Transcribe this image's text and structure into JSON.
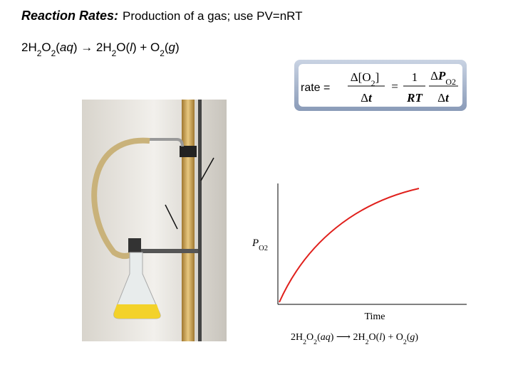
{
  "title": {
    "lead": "Reaction Rates:",
    "text": "Production of a gas; use PV=nRT"
  },
  "equation": [
    {
      "text": "2H"
    },
    {
      "text": "2",
      "style": "sub"
    },
    {
      "text": "O"
    },
    {
      "text": "2",
      "style": "sub"
    },
    {
      "text": "("
    },
    {
      "text": "aq",
      "style": "italic"
    },
    {
      "text": ") → 2H"
    },
    {
      "text": "2",
      "style": "sub"
    },
    {
      "text": "O("
    },
    {
      "text": "l",
      "style": "italic"
    },
    {
      "text": ") + O"
    },
    {
      "text": "2",
      "style": "sub"
    },
    {
      "text": "("
    },
    {
      "text": "g",
      "style": "italic"
    },
    {
      "text": ")"
    }
  ],
  "rate_box": {
    "lhs": "rate =",
    "num1": [
      {
        "text": "Δ[O"
      },
      {
        "text": "2",
        "style": "sub"
      },
      {
        "text": "]"
      }
    ],
    "den1": [
      {
        "text": "Δ"
      },
      {
        "text": "t",
        "style": "bold-italic"
      }
    ],
    "eq": "=",
    "num2": [
      {
        "text": "1"
      }
    ],
    "den2": [
      {
        "text": "RT",
        "style": "bold-italic"
      }
    ],
    "num3": [
      {
        "text": "Δ"
      },
      {
        "text": "P",
        "style": "bold-italic"
      },
      {
        "text": "O",
        "style": "sub"
      },
      {
        "text": "2",
        "style": "sub"
      }
    ],
    "den3": [
      {
        "text": "Δ"
      },
      {
        "text": "t",
        "style": "bold-italic"
      }
    ]
  },
  "graph": {
    "y_label": [
      {
        "text": "P",
        "style": "italic"
      },
      {
        "text": "O",
        "style": "sub"
      },
      {
        "text": "2",
        "style": "sub"
      }
    ],
    "x_label": "Time",
    "equation": [
      {
        "text": "2H"
      },
      {
        "text": "2",
        "style": "sub"
      },
      {
        "text": "O"
      },
      {
        "text": "2",
        "style": "sub"
      },
      {
        "text": "("
      },
      {
        "text": "aq",
        "style": "italic"
      },
      {
        "text": ") ⟶ 2H"
      },
      {
        "text": "2",
        "style": "sub"
      },
      {
        "text": "O("
      },
      {
        "text": "l",
        "style": "italic"
      },
      {
        "text": ") + O"
      },
      {
        "text": "2",
        "style": "sub"
      },
      {
        "text": "("
      },
      {
        "text": "g",
        "style": "italic"
      },
      {
        "text": ")"
      }
    ]
  }
}
